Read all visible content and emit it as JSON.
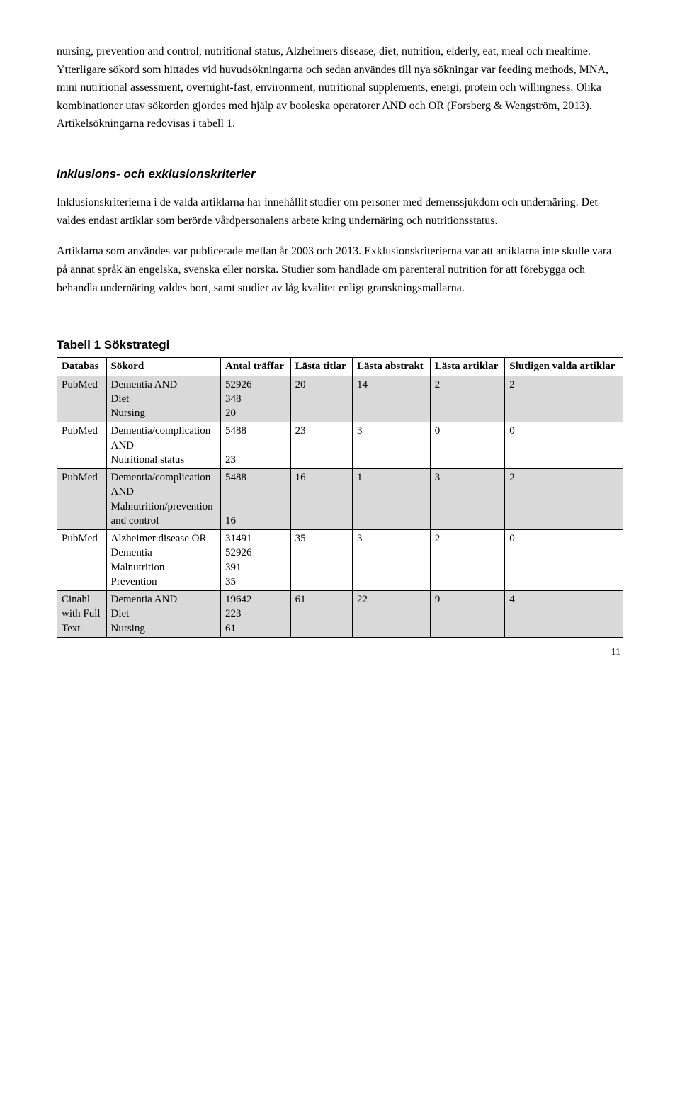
{
  "para1": "nursing, prevention and control, nutritional status, Alzheimers disease, diet, nutrition, elderly, eat, meal och mealtime. Ytterligare sökord som hittades vid huvudsökningarna och sedan användes till nya sökningar var feeding methods, MNA, mini nutritional assessment, overnight-fast, environment, nutritional supplements, energi, protein och willingness. Olika kombinationer utav sökorden gjordes med hjälp av booleska operatorer AND och OR (Forsberg & Wengström, 2013). Artikelsökningarna redovisas i tabell 1.",
  "section_heading_1": "Inklusions- och exklusionskriterier",
  "para2": "Inklusionskriterierna i de valda artiklarna har innehållit studier om personer med demenssjukdom och undernäring. Det valdes endast artiklar som berörde vårdpersonalens arbete kring undernäring och nutritionsstatus.",
  "para3": "Artiklarna som användes var publicerade mellan år 2003 och 2013. Exklusionskriterierna var att artiklarna inte skulle vara på annat språk än engelska, svenska eller norska. Studier som handlade om parenteral nutrition för att förebygga och behandla undernäring valdes bort, samt studier av låg kvalitet enligt granskningsmallarna.",
  "table_heading": "Tabell 1 Sökstrategi",
  "columns": [
    "Databas",
    "Sökord",
    "Antal träffar",
    "Lästa titlar",
    "Lästa abstrakt",
    "Lästa artiklar",
    "Slutligen valda artiklar"
  ],
  "rows": [
    {
      "shaded": true,
      "databas": "PubMed",
      "sokord": "Dementia AND\nDiet\nNursing",
      "antal": "52926\n348\n20",
      "titlar": "20",
      "abstrakt": "14",
      "lasta": "2",
      "valda": "2"
    },
    {
      "shaded": false,
      "databas": "PubMed",
      "sokord": "Dementia/complication\nAND\nNutritional status",
      "antal": "5488\n\n23",
      "titlar": "23",
      "abstrakt": "3",
      "lasta": "0",
      "valda": "0"
    },
    {
      "shaded": true,
      "databas": "PubMed",
      "sokord": "Dementia/complication\nAND\nMalnutrition/prevention\nand control",
      "antal": "5488\n\n\n16",
      "titlar": "16",
      "abstrakt": "1",
      "lasta": "3",
      "valda": "2"
    },
    {
      "shaded": false,
      "databas": "PubMed",
      "sokord": "Alzheimer disease OR\nDementia\nMalnutrition\nPrevention",
      "antal": "31491\n52926\n391\n35",
      "titlar": "35",
      "abstrakt": "3",
      "lasta": "2",
      "valda": "0"
    },
    {
      "shaded": true,
      "databas": "Cinahl\nwith Full\nText",
      "sokord": "Dementia AND\nDiet\nNursing",
      "antal": "19642\n223\n61",
      "titlar": "61",
      "abstrakt": "22",
      "lasta": "9",
      "valda": "4"
    }
  ],
  "page_number": "11"
}
